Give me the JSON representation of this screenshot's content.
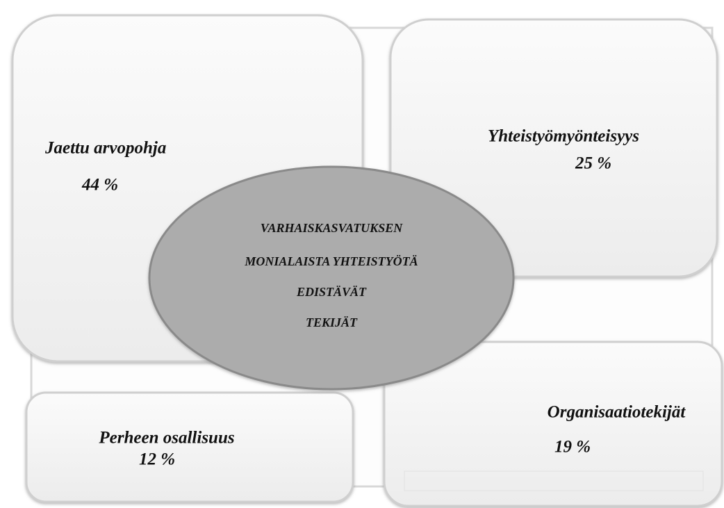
{
  "center": {
    "lines": [
      "VARHAISKASVATUKSEN",
      "MONIALAISTA YHTEISTYÖTÄ",
      "EDISTÄVÄT",
      "TEKIJÄT"
    ]
  },
  "nodes": [
    {
      "label": "Jaettu arvopohja",
      "share": "44 %"
    },
    {
      "label": "Yhteistyömyönteisyys",
      "share": "25 %"
    },
    {
      "label": "Perheen osallisuus",
      "share": "12 %"
    },
    {
      "label": "Organisaatiotekijät",
      "share": "19 %"
    }
  ]
}
